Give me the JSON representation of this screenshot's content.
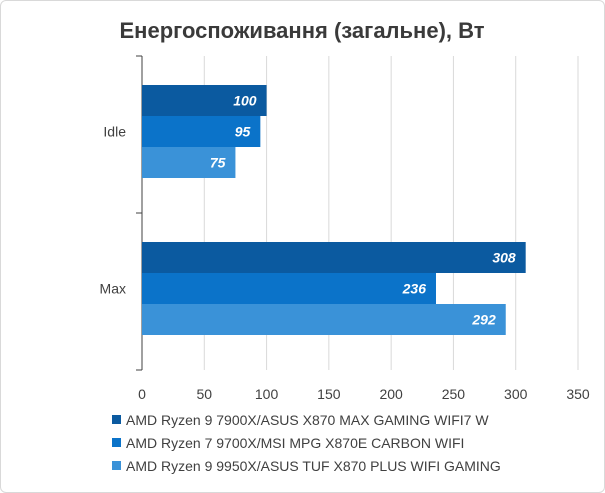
{
  "chart_data": {
    "type": "bar",
    "orientation": "horizontal",
    "title": "Енергоспоживання (загальне), Вт",
    "categories": [
      "Idle",
      "Max"
    ],
    "series": [
      {
        "name": "AMD Ryzen 9 7900X/ASUS X870 MAX GAMING WIFI7 W",
        "values": [
          100,
          308
        ],
        "color": "#0b5aa0"
      },
      {
        "name": "AMD Ryzen 7 9700X/MSI MPG X870E CARBON WIFI",
        "values": [
          95,
          236
        ],
        "color": "#0b73c9"
      },
      {
        "name": "AMD Ryzen 9 9950X/ASUS TUF X870 PLUS WIFI GAMING",
        "values": [
          75,
          292
        ],
        "color": "#3a92d8"
      }
    ],
    "xlim": [
      0,
      350
    ],
    "xticks": [
      0,
      50,
      100,
      150,
      200,
      250,
      300,
      350
    ],
    "grid": true,
    "legend_position": "bottom",
    "data_labels": true
  }
}
